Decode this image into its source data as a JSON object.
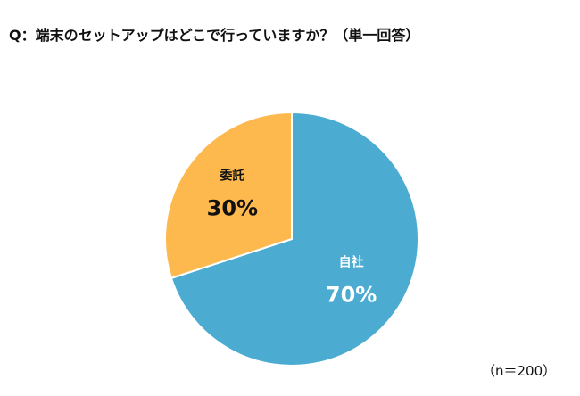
{
  "title": "Q：端末のセットアップはどこで行っていますか？（単一回答）",
  "note": "（n＝200）",
  "chart_data": {
    "type": "pie",
    "title": "Q：端末のセットアップはどこで行っていますか？（単一回答）",
    "slices": [
      {
        "label": "自社",
        "value": 70,
        "value_label": "70%",
        "color": "#4BABD1",
        "text_color": "#ffffff"
      },
      {
        "label": "委託",
        "value": 30,
        "value_label": "30%",
        "color": "#FDB84E",
        "text_color": "#111111"
      }
    ],
    "legend": "none",
    "start_angle_deg": 0,
    "direction": "clockwise"
  }
}
